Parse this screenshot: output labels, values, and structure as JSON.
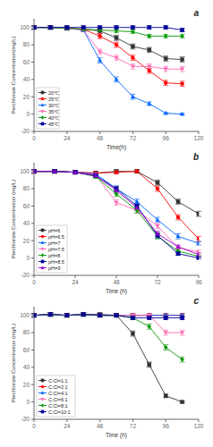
{
  "chart_data": [
    {
      "type": "line",
      "title": "a",
      "x_label": "Time(h)",
      "y_label": "Perchlorate Concentration(mg/L)",
      "xlim": [
        0,
        120
      ],
      "ylim": [
        -20,
        110
      ],
      "xticks": [
        0,
        24,
        48,
        72,
        96,
        120
      ],
      "yticks": [
        -20,
        0,
        20,
        40,
        60,
        80,
        100
      ],
      "grid": false,
      "legend": "lower left",
      "series": [
        {
          "name": "20℃",
          "color": "#333333",
          "marker": "square",
          "x": [
            0,
            12,
            24,
            36,
            48,
            60,
            72,
            84,
            96,
            108
          ],
          "values": [
            100,
            100,
            99,
            98,
            96,
            88,
            78,
            74,
            64,
            63
          ],
          "yerr": [
            2,
            2,
            2,
            2,
            3,
            3,
            3,
            3,
            3,
            3
          ]
        },
        {
          "name": "25℃",
          "color": "#ff0000",
          "marker": "circle",
          "x": [
            0,
            12,
            24,
            36,
            48,
            60,
            72,
            84,
            96,
            108
          ],
          "values": [
            100,
            100,
            99,
            98,
            90,
            80,
            65,
            50,
            36,
            35
          ],
          "yerr": [
            2,
            2,
            2,
            2,
            3,
            3,
            3,
            3,
            3,
            3
          ]
        },
        {
          "name": "30℃",
          "color": "#0066ff",
          "marker": "triangle-up",
          "x": [
            0,
            12,
            24,
            36,
            48,
            60,
            72,
            84,
            96,
            108
          ],
          "values": [
            100,
            100,
            99,
            97,
            62,
            40,
            20,
            12,
            1,
            0
          ],
          "yerr": [
            2,
            2,
            2,
            2,
            3,
            3,
            3,
            2,
            1,
            1
          ]
        },
        {
          "name": "35℃",
          "color": "#ff69b4",
          "marker": "triangle-down",
          "x": [
            0,
            12,
            24,
            36,
            48,
            60,
            72,
            84,
            96,
            108
          ],
          "values": [
            100,
            100,
            99,
            97,
            72,
            65,
            55,
            55,
            52,
            52
          ],
          "yerr": [
            2,
            2,
            2,
            2,
            3,
            3,
            3,
            3,
            3,
            3
          ]
        },
        {
          "name": "40℃",
          "color": "#009900",
          "marker": "diamond",
          "x": [
            0,
            12,
            24,
            36,
            48,
            60,
            72,
            84,
            96,
            108
          ],
          "values": [
            100,
            100,
            99,
            98,
            97,
            96,
            95,
            90,
            90,
            90
          ],
          "yerr": [
            2,
            2,
            2,
            2,
            2,
            2,
            2,
            2,
            2,
            2
          ]
        },
        {
          "name": "45℃",
          "color": "#000099",
          "marker": "square",
          "x": [
            0,
            12,
            24,
            36,
            48,
            60,
            72,
            84,
            96,
            108
          ],
          "values": [
            100,
            100,
            100,
            100,
            100,
            100,
            100,
            100,
            100,
            97
          ],
          "yerr": [
            2,
            2,
            2,
            2,
            2,
            2,
            2,
            2,
            2,
            2
          ]
        }
      ]
    },
    {
      "type": "line",
      "title": "b",
      "x_label": "Time (h)",
      "y_label": "Perchlorate Concentration (mg/L)",
      "xlim": [
        0,
        96
      ],
      "ylim": [
        -20,
        110
      ],
      "xticks": [
        0,
        24,
        48,
        72,
        96
      ],
      "yticks": [
        -20,
        0,
        20,
        40,
        60,
        80,
        100
      ],
      "grid": false,
      "legend": "lower left",
      "series": [
        {
          "name": "pH=6",
          "color": "#333333",
          "marker": "square",
          "x": [
            0,
            12,
            24,
            36,
            48,
            60,
            72,
            84,
            96
          ],
          "values": [
            100,
            100,
            99,
            98,
            100,
            100,
            87,
            65,
            51
          ],
          "yerr": [
            2,
            2,
            2,
            2,
            2,
            2,
            3,
            3,
            3
          ]
        },
        {
          "name": "pH=6.5",
          "color": "#ff0000",
          "marker": "circle",
          "x": [
            0,
            12,
            24,
            36,
            48,
            60,
            72,
            84,
            96
          ],
          "values": [
            100,
            100,
            99,
            98,
            99,
            100,
            80,
            47,
            22
          ],
          "yerr": [
            2,
            2,
            2,
            2,
            2,
            2,
            3,
            3,
            3
          ]
        },
        {
          "name": "pH=7",
          "color": "#0066ff",
          "marker": "triangle-up",
          "x": [
            0,
            12,
            24,
            36,
            48,
            60,
            72,
            84,
            96
          ],
          "values": [
            100,
            100,
            99,
            97,
            80,
            65,
            44,
            25,
            17
          ],
          "yerr": [
            2,
            2,
            2,
            2,
            3,
            3,
            3,
            3,
            2
          ]
        },
        {
          "name": "pH=7.5",
          "color": "#ff69b4",
          "marker": "triangle-down",
          "x": [
            0,
            12,
            24,
            36,
            48,
            60,
            72,
            84,
            96
          ],
          "values": [
            100,
            100,
            99,
            96,
            64,
            55,
            37,
            12,
            7
          ],
          "yerr": [
            2,
            2,
            2,
            2,
            3,
            3,
            3,
            2,
            2
          ]
        },
        {
          "name": "pH=8",
          "color": "#009900",
          "marker": "diamond",
          "x": [
            0,
            12,
            24,
            36,
            48,
            60,
            72,
            84,
            96
          ],
          "values": [
            100,
            100,
            99,
            94,
            74,
            55,
            25,
            8,
            2
          ],
          "yerr": [
            2,
            2,
            2,
            2,
            3,
            3,
            3,
            2,
            1
          ]
        },
        {
          "name": "pH=8.5",
          "color": "#000099",
          "marker": "square",
          "x": [
            0,
            12,
            24,
            36,
            48,
            60,
            72,
            84,
            96
          ],
          "values": [
            100,
            100,
            99,
            95,
            80,
            60,
            26,
            5,
            0
          ],
          "yerr": [
            2,
            2,
            2,
            2,
            3,
            3,
            3,
            2,
            1
          ]
        },
        {
          "name": "pH=9",
          "color": "#9900cc",
          "marker": "triangle-up",
          "x": [
            0,
            12,
            24,
            36,
            48,
            60,
            72,
            84,
            96
          ],
          "values": [
            100,
            100,
            99,
            95,
            78,
            58,
            28,
            13,
            4
          ],
          "yerr": [
            2,
            2,
            2,
            2,
            3,
            3,
            3,
            2,
            2
          ]
        }
      ]
    },
    {
      "type": "line",
      "title": "c",
      "x_label": "Time (h)",
      "y_label": "Perchlorate Concentration (mg/L)",
      "xlim": [
        0,
        120
      ],
      "ylim": [
        -20,
        110
      ],
      "xticks": [
        0,
        24,
        48,
        72,
        96,
        120
      ],
      "yticks": [
        -20,
        0,
        20,
        40,
        60,
        80,
        100
      ],
      "grid": false,
      "legend": "lower left",
      "series": [
        {
          "name": "C:Cl=1:1",
          "color": "#333333",
          "marker": "square",
          "x": [
            0,
            12,
            24,
            36,
            48,
            60,
            72,
            84,
            96,
            108
          ],
          "values": [
            100,
            101,
            100,
            101,
            101,
            100,
            79,
            43,
            7,
            0
          ],
          "yerr": [
            2,
            2,
            2,
            2,
            2,
            2,
            3,
            3,
            2,
            1
          ]
        },
        {
          "name": "C:Cl=2:1",
          "color": "#ff0000",
          "marker": "circle",
          "x": [
            0,
            12,
            24,
            36,
            48,
            60,
            72,
            84,
            96,
            108
          ],
          "values": [
            100,
            101,
            100,
            101,
            100,
            100,
            100,
            100,
            100,
            100
          ],
          "yerr": [
            2,
            2,
            2,
            2,
            2,
            2,
            2,
            2,
            2,
            2
          ]
        },
        {
          "name": "C:Cl=4:1",
          "color": "#0066ff",
          "marker": "triangle-up",
          "x": [
            0,
            12,
            24,
            36,
            48,
            60,
            72,
            84,
            96,
            108
          ],
          "values": [
            100,
            101,
            100,
            101,
            100,
            100,
            100,
            100,
            100,
            100
          ],
          "yerr": [
            2,
            2,
            2,
            2,
            2,
            2,
            2,
            2,
            2,
            2
          ]
        },
        {
          "name": "C:Cl=6:1",
          "color": "#ff69b4",
          "marker": "triangle-down",
          "x": [
            0,
            12,
            24,
            36,
            48,
            60,
            72,
            84,
            96,
            108
          ],
          "values": [
            100,
            101,
            100,
            101,
            100,
            100,
            100,
            100,
            80,
            80
          ],
          "yerr": [
            2,
            2,
            2,
            2,
            2,
            2,
            2,
            2,
            3,
            3
          ]
        },
        {
          "name": "C:Cl=8:1",
          "color": "#009900",
          "marker": "diamond",
          "x": [
            0,
            12,
            24,
            36,
            48,
            60,
            72,
            84,
            96,
            108
          ],
          "values": [
            100,
            101,
            100,
            101,
            100,
            100,
            97,
            87,
            63,
            49
          ],
          "yerr": [
            2,
            2,
            2,
            2,
            2,
            2,
            2,
            3,
            3,
            3
          ]
        },
        {
          "name": "C:Cl=10:1",
          "color": "#000099",
          "marker": "square",
          "x": [
            0,
            12,
            24,
            36,
            48,
            60,
            72,
            84,
            96,
            108
          ],
          "values": [
            100,
            101,
            100,
            101,
            100,
            100,
            97,
            97,
            97,
            97
          ],
          "yerr": [
            2,
            2,
            2,
            2,
            2,
            2,
            2,
            2,
            2,
            2
          ]
        }
      ]
    }
  ]
}
